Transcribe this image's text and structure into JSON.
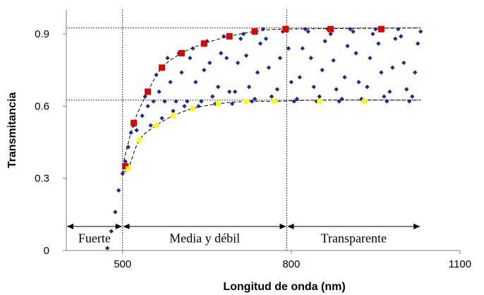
{
  "chart_data": {
    "type": "scatter",
    "title": "",
    "xlabel": "Longitud de onda (nm)",
    "ylabel": "Transmitancia",
    "xlim": [
      400,
      1100
    ],
    "ylim": [
      0,
      1.0
    ],
    "x_ticks": [
      500,
      800,
      1100
    ],
    "x_tick_labels": [
      "500",
      "800",
      "1100"
    ],
    "y_ticks": [
      0,
      0.3,
      0.6,
      0.9
    ],
    "y_tick_labels": [
      "0",
      "0.3",
      "0.6",
      "0.9"
    ],
    "grid": false,
    "legend": "none",
    "series": [
      {
        "marker": "diamond",
        "color": "#1f2a8c",
        "x": [
          473,
          480,
          487,
          493,
          500,
          505,
          510,
          515,
          520,
          525,
          530,
          535,
          540,
          545,
          550,
          555,
          560,
          565,
          570,
          575,
          580,
          585,
          590,
          595,
          600,
          605,
          610,
          615,
          620,
          625,
          630,
          635,
          640,
          645,
          650,
          655,
          660,
          665,
          670,
          675,
          680,
          685,
          690,
          695,
          700,
          705,
          710,
          715,
          720,
          725,
          730,
          735,
          740,
          745,
          750,
          755,
          760,
          765,
          770,
          775,
          780,
          785,
          790,
          795,
          800,
          805,
          810,
          815,
          820,
          825,
          830,
          835,
          840,
          845,
          850,
          855,
          860,
          865,
          870,
          875,
          880,
          885,
          890,
          895,
          900,
          905,
          910,
          915,
          920,
          925,
          930,
          935,
          940,
          945,
          950,
          955,
          960,
          965,
          970,
          975,
          980,
          985,
          990,
          995,
          1000,
          1005,
          1010,
          1015,
          1020,
          1025,
          1030
        ],
        "y": [
          0.01,
          0.08,
          0.16,
          0.25,
          0.32,
          0.37,
          0.43,
          0.49,
          0.52,
          0.5,
          0.46,
          0.56,
          0.64,
          0.6,
          0.52,
          0.62,
          0.73,
          0.66,
          0.55,
          0.62,
          0.8,
          0.7,
          0.58,
          0.62,
          0.82,
          0.74,
          0.6,
          0.62,
          0.8,
          0.84,
          0.7,
          0.6,
          0.62,
          0.75,
          0.87,
          0.78,
          0.64,
          0.61,
          0.68,
          0.82,
          0.89,
          0.8,
          0.66,
          0.61,
          0.66,
          0.78,
          0.88,
          0.9,
          0.81,
          0.68,
          0.62,
          0.63,
          0.74,
          0.86,
          0.92,
          0.88,
          0.76,
          0.64,
          0.62,
          0.67,
          0.8,
          0.91,
          0.92,
          0.84,
          0.7,
          0.62,
          0.63,
          0.72,
          0.84,
          0.92,
          0.91,
          0.8,
          0.68,
          0.62,
          0.64,
          0.75,
          0.87,
          0.92,
          0.9,
          0.79,
          0.67,
          0.62,
          0.63,
          0.72,
          0.85,
          0.92,
          0.91,
          0.82,
          0.7,
          0.63,
          0.62,
          0.68,
          0.8,
          0.9,
          0.92,
          0.86,
          0.74,
          0.64,
          0.62,
          0.66,
          0.76,
          0.88,
          0.92,
          0.89,
          0.78,
          0.67,
          0.62,
          0.64,
          0.74,
          0.86,
          0.91
        ]
      },
      {
        "marker": "square",
        "color": "#e00000",
        "x": [
          505,
          520,
          545,
          570,
          605,
          645,
          690,
          735,
          790,
          870,
          960
        ],
        "y": [
          0.35,
          0.53,
          0.66,
          0.76,
          0.82,
          0.86,
          0.89,
          0.91,
          0.92,
          0.92,
          0.92
        ]
      },
      {
        "marker": "square",
        "color": "#ffff00",
        "x": [
          510,
          530,
          560,
          590,
          625,
          670,
          720,
          770,
          850,
          930
        ],
        "y": [
          0.34,
          0.46,
          0.52,
          0.56,
          0.59,
          0.61,
          0.62,
          0.62,
          0.62,
          0.62
        ]
      }
    ],
    "reference_lines": {
      "horizontal": [
        0.925,
        0.625
      ],
      "vertical": [
        500,
        792
      ]
    },
    "envelopes": {
      "upper": {
        "x": [
          500,
          520,
          545,
          570,
          605,
          645,
          690,
          735,
          790,
          1030
        ],
        "y": [
          0.35,
          0.53,
          0.66,
          0.76,
          0.82,
          0.86,
          0.89,
          0.91,
          0.92,
          0.925
        ]
      },
      "lower": {
        "x": [
          500,
          510,
          530,
          560,
          590,
          625,
          670,
          720,
          770,
          850,
          1030
        ],
        "y": [
          0.33,
          0.34,
          0.46,
          0.52,
          0.56,
          0.59,
          0.61,
          0.62,
          0.62,
          0.625,
          0.625
        ]
      }
    },
    "regions": [
      {
        "label": "Fuerte",
        "x_start": 400,
        "x_end": 500
      },
      {
        "label": "Media y débil",
        "x_start": 500,
        "x_end": 792
      },
      {
        "label": "Transparente",
        "x_start": 792,
        "x_end": 1030
      }
    ],
    "region_arrow_y": 0.1,
    "region_label_y": 0.045,
    "colors": {
      "axis": "#808080",
      "envelope": "#000000",
      "data": "#1f2a8c",
      "max": "#e00000",
      "min": "#ffff00"
    }
  }
}
